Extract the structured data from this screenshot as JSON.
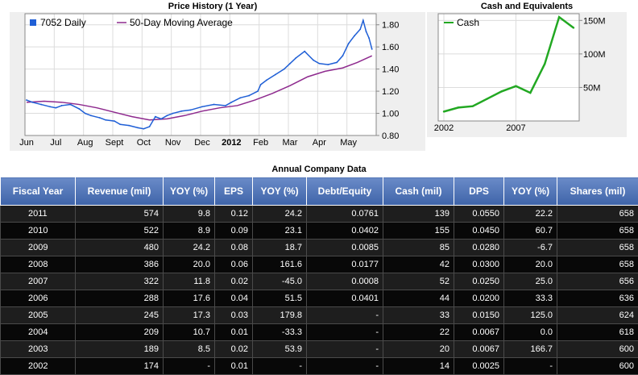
{
  "chart_data": [
    {
      "type": "line",
      "title": "Price History (1 Year)",
      "legend": [
        "7052 Daily",
        "50-Day Moving Average"
      ],
      "x_ticks": [
        "Jun",
        "Jul",
        "Aug",
        "Sept",
        "Oct",
        "Nov",
        "Dec",
        "2012",
        "Feb",
        "Mar",
        "Apr",
        "May"
      ],
      "y_ticks": [
        "1.80",
        "1.60",
        "1.40",
        "1.20",
        "1.00",
        "0.80"
      ],
      "ylim": [
        0.8,
        1.9
      ],
      "colors": {
        "daily": "#1f5fd6",
        "ma": "#8e2a8e"
      },
      "series": [
        {
          "name": "7052 Daily",
          "x": [
            0,
            0.2,
            0.5,
            0.8,
            1.0,
            1.2,
            1.5,
            1.8,
            2.0,
            2.2,
            2.5,
            2.7,
            3.0,
            3.2,
            3.5,
            3.8,
            4.0,
            4.2,
            4.4,
            4.6,
            4.8,
            5.0,
            5.3,
            5.6,
            6.0,
            6.4,
            6.8,
            7.0,
            7.3,
            7.6,
            7.9,
            8.0,
            8.2,
            8.5,
            8.8,
            9.0,
            9.2,
            9.5,
            9.8,
            10.0,
            10.3,
            10.6,
            10.8,
            11.0,
            11.2,
            11.4,
            11.5,
            11.6,
            11.7,
            11.8
          ],
          "values": [
            1.12,
            1.1,
            1.08,
            1.06,
            1.05,
            1.07,
            1.08,
            1.04,
            1.0,
            0.98,
            0.96,
            0.94,
            0.93,
            0.9,
            0.89,
            0.87,
            0.86,
            0.88,
            0.97,
            0.95,
            0.98,
            1.0,
            1.02,
            1.03,
            1.06,
            1.08,
            1.07,
            1.1,
            1.14,
            1.16,
            1.2,
            1.26,
            1.3,
            1.35,
            1.4,
            1.45,
            1.5,
            1.56,
            1.48,
            1.45,
            1.44,
            1.46,
            1.52,
            1.63,
            1.7,
            1.76,
            1.84,
            1.74,
            1.68,
            1.58
          ]
        },
        {
          "name": "50-Day Moving Average",
          "x": [
            0,
            0.6,
            1.2,
            1.8,
            2.4,
            3.0,
            3.6,
            4.2,
            4.8,
            5.4,
            6.0,
            6.6,
            7.2,
            7.8,
            8.4,
            9.0,
            9.6,
            10.2,
            10.8,
            11.3,
            11.8
          ],
          "values": [
            1.1,
            1.11,
            1.1,
            1.08,
            1.05,
            1.01,
            0.97,
            0.94,
            0.95,
            0.98,
            1.02,
            1.05,
            1.07,
            1.12,
            1.18,
            1.25,
            1.33,
            1.38,
            1.41,
            1.46,
            1.52
          ]
        }
      ]
    },
    {
      "type": "line",
      "title": "Cash and Equivalents",
      "legend": [
        "Cash"
      ],
      "x_ticks": [
        "2002",
        "2007"
      ],
      "y_ticks": [
        "150M",
        "100M",
        "50M"
      ],
      "ylim": [
        0,
        160
      ],
      "colors": {
        "cash": "#22a822"
      },
      "series": [
        {
          "name": "Cash",
          "x": [
            2002,
            2003,
            2004,
            2005,
            2006,
            2007,
            2008,
            2009,
            2010,
            2011
          ],
          "values": [
            14,
            20,
            22,
            33,
            44,
            52,
            42,
            85,
            155,
            139
          ]
        }
      ]
    }
  ],
  "table": {
    "title": "Annual Company Data",
    "headers": [
      "Fiscal Year",
      "Revenue (mil)",
      "YOY (%)",
      "EPS",
      "YOY (%)",
      "Debt/Equity",
      "Cash (mil)",
      "DPS",
      "YOY (%)",
      "Shares (mil)"
    ],
    "rows": [
      [
        "2011",
        "574",
        "9.8",
        "0.12",
        "24.2",
        "0.0761",
        "139",
        "0.0550",
        "22.2",
        "658"
      ],
      [
        "2010",
        "522",
        "8.9",
        "0.09",
        "23.1",
        "0.0402",
        "155",
        "0.0450",
        "60.7",
        "658"
      ],
      [
        "2009",
        "480",
        "24.2",
        "0.08",
        "18.7",
        "0.0085",
        "85",
        "0.0280",
        "-6.7",
        "658"
      ],
      [
        "2008",
        "386",
        "20.0",
        "0.06",
        "161.6",
        "0.0177",
        "42",
        "0.0300",
        "20.0",
        "658"
      ],
      [
        "2007",
        "322",
        "11.8",
        "0.02",
        "-45.0",
        "0.0008",
        "52",
        "0.0250",
        "25.0",
        "656"
      ],
      [
        "2006",
        "288",
        "17.6",
        "0.04",
        "51.5",
        "0.0401",
        "44",
        "0.0200",
        "33.3",
        "636"
      ],
      [
        "2005",
        "245",
        "17.3",
        "0.03",
        "179.8",
        "-",
        "33",
        "0.0150",
        "125.0",
        "624"
      ],
      [
        "2004",
        "209",
        "10.7",
        "0.01",
        "-33.3",
        "-",
        "22",
        "0.0067",
        "0.0",
        "618"
      ],
      [
        "2003",
        "189",
        "8.5",
        "0.02",
        "53.9",
        "-",
        "20",
        "0.0067",
        "166.7",
        "600"
      ],
      [
        "2002",
        "174",
        "-",
        "0.01",
        "-",
        "-",
        "14",
        "0.0025",
        "-",
        "600"
      ]
    ]
  }
}
